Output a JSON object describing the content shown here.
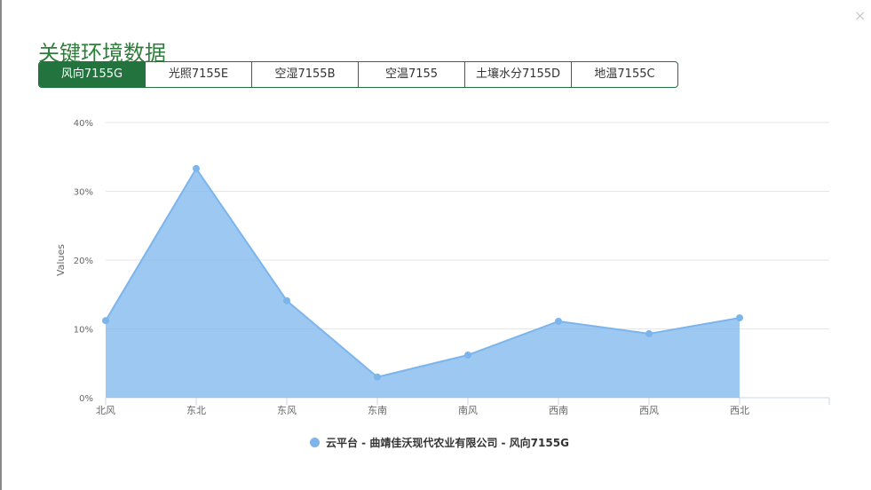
{
  "title": "关键环境数据",
  "close_icon": "×",
  "tabs": [
    {
      "label": "风向7155G",
      "active": true
    },
    {
      "label": "光照7155E"
    },
    {
      "label": "空湿7155B"
    },
    {
      "label": "空温7155"
    },
    {
      "label": "土壤水分7155D"
    },
    {
      "label": "地温7155C"
    }
  ],
  "chart_data": {
    "type": "area",
    "categories": [
      "北风",
      "东北",
      "东风",
      "东南",
      "南风",
      "西南",
      "西风",
      "西北"
    ],
    "series": [
      {
        "name": "云平台 - 曲靖佳沃现代农业有限公司 - 风向7155G",
        "values": [
          11.2,
          33.3,
          14.1,
          3.0,
          6.2,
          11.1,
          9.3,
          11.6
        ],
        "color": "#7cb5ec"
      }
    ],
    "ylabel": "Values",
    "ylim": [
      0,
      40
    ],
    "yticks": [
      "0%",
      "10%",
      "20%",
      "30%",
      "40%"
    ],
    "grid": true,
    "legend": "bottom"
  }
}
